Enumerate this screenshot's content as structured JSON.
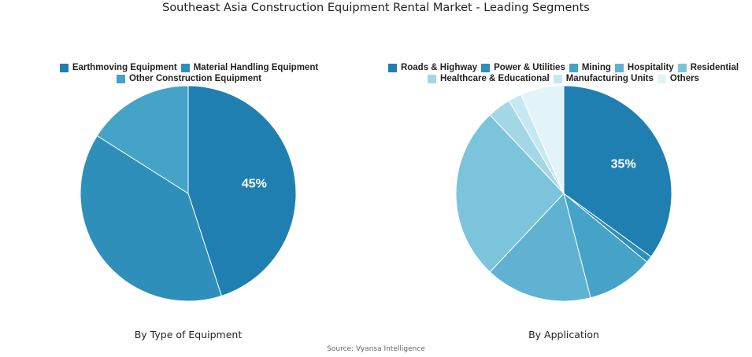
{
  "title": "Southeast Asia Construction Equipment Rental Market - Leading Segments",
  "source": "Source: Vyansa Intelligence",
  "chart_data": [
    {
      "type": "pie",
      "title": "By Type of Equipment",
      "slices": [
        {
          "name": "Earthmoving Equipment",
          "value": 45,
          "color": "#1f7fb1",
          "label": "45%"
        },
        {
          "name": "Material Handling Equipment",
          "value": 39,
          "color": "#2e8fbb",
          "label": ""
        },
        {
          "name": "Other Construction Equipment",
          "value": 16,
          "color": "#45a3c8",
          "label": ""
        }
      ]
    },
    {
      "type": "pie",
      "title": "By Application",
      "slices": [
        {
          "name": "Roads & Highway",
          "value": 35,
          "color": "#1f7fb1",
          "label": "35%"
        },
        {
          "name": "Power & Utilities",
          "value": 1,
          "color": "#2e8fbb",
          "label": ""
        },
        {
          "name": "Mining",
          "value": 10,
          "color": "#45a3c8",
          "label": ""
        },
        {
          "name": "Hospitality",
          "value": 16,
          "color": "#5fb2d2",
          "label": ""
        },
        {
          "name": "Residential",
          "value": 26,
          "color": "#7cc4dc",
          "label": ""
        },
        {
          "name": "Healthcare & Educational",
          "value": 3.5,
          "color": "#a4d7e6",
          "label": ""
        },
        {
          "name": "Manufacturing Units",
          "value": 2,
          "color": "#c6e8f1",
          "label": ""
        },
        {
          "name": "Others",
          "value": 6.5,
          "color": "#e2f4f9",
          "label": ""
        }
      ]
    }
  ]
}
